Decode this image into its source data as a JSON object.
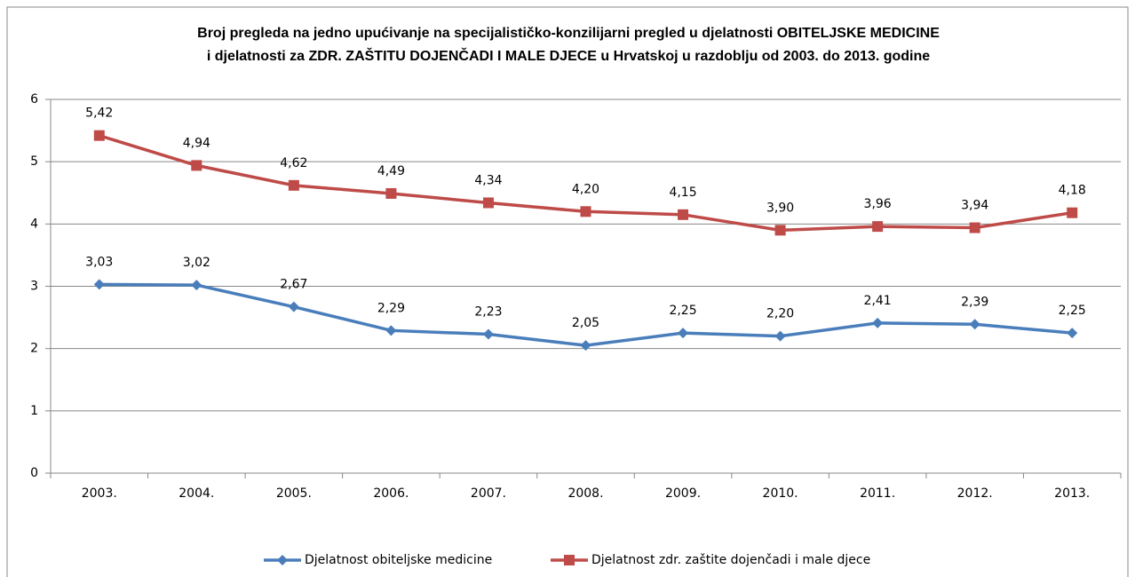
{
  "chart_data": {
    "type": "line",
    "title": [
      "Broj pregleda na jedno upućivanje na specijalističko-konzilijarni pregled u djelatnosti OBITELJSKE MEDICINE",
      "i djelatnosti  za ZDR. ZAŠTITU DOJENČADI I MALE DJECE u Hrvatskoj u razdoblju od 2003. do 2013. godine"
    ],
    "categories": [
      "2003.",
      "2004.",
      "2005.",
      "2006.",
      "2007.",
      "2008.",
      "2009.",
      "2010.",
      "2011.",
      "2012.",
      "2013."
    ],
    "series": [
      {
        "name": "Djelatnost obiteljske medicine",
        "color": "#4a7ebb",
        "marker": "diamond",
        "values": [
          3.03,
          3.02,
          2.67,
          2.29,
          2.23,
          2.05,
          2.25,
          2.2,
          2.41,
          2.39,
          2.25
        ],
        "value_labels": [
          "3,03",
          "3,02",
          "2,67",
          "2,29",
          "2,23",
          "2,05",
          "2,25",
          "2,20",
          "2,41",
          "2,39",
          "2,25"
        ]
      },
      {
        "name": "Djelatnost zdr. zaštite dojenčadi i male djece",
        "color": "#be4b48",
        "marker": "square",
        "values": [
          5.42,
          4.94,
          4.62,
          4.49,
          4.34,
          4.2,
          4.15,
          3.9,
          3.96,
          3.94,
          4.18
        ],
        "value_labels": [
          "5,42",
          "4,94",
          "4,62",
          "4,49",
          "4,34",
          "4,20",
          "4,15",
          "3,90",
          "3,96",
          "3,94",
          "4,18"
        ]
      }
    ],
    "ylim": [
      0,
      6
    ],
    "yticks": [
      0,
      1,
      2,
      3,
      4,
      5,
      6
    ],
    "grid": true,
    "legend": "bottom"
  }
}
